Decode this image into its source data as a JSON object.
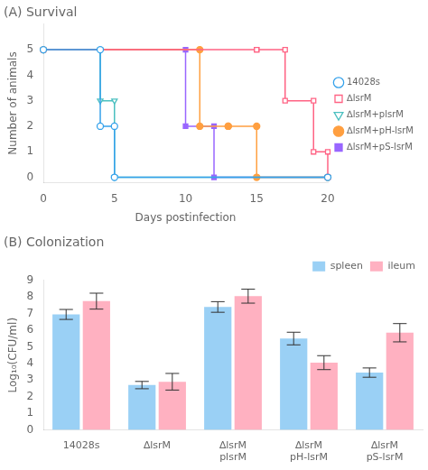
{
  "chart_data": [
    {
      "type": "line",
      "title": "(A) Survival",
      "x_label": "Days postinfection",
      "y_label": "Number of animals",
      "xlim": [
        0,
        20
      ],
      "xticks": [
        0,
        5,
        10,
        15,
        20
      ],
      "ylim": [
        -0.2,
        6
      ],
      "yticks": [
        0,
        1,
        2,
        3,
        4,
        5
      ],
      "grid": false,
      "legend": "center right",
      "series": [
        {
          "name": "14028s",
          "marker": "circle",
          "x": [
            0,
            4,
            4,
            5,
            5,
            20
          ],
          "values": [
            5,
            5,
            2,
            2,
            0,
            0
          ]
        },
        {
          "name": "∆lsrM",
          "marker": "square",
          "x": [
            0,
            15,
            15,
            17,
            17,
            19,
            19,
            20,
            20
          ],
          "values": [
            5,
            5,
            5,
            5,
            3,
            3,
            1,
            1,
            0
          ]
        },
        {
          "name": "∆lsrM+plsrM",
          "marker": "triangle_down",
          "x": [
            0,
            4,
            4,
            5,
            5,
            20
          ],
          "values": [
            5,
            5,
            3,
            3,
            0,
            0
          ]
        },
        {
          "name": "∆lsrM+pH-lsrM",
          "marker": "filled_circle",
          "x": [
            0,
            11,
            11,
            13,
            13,
            15,
            15,
            20
          ],
          "values": [
            5,
            5,
            2,
            2,
            2,
            2,
            0,
            0
          ]
        },
        {
          "name": "∆lsrM+pS-lsrM",
          "marker": "filled_square",
          "x": [
            0,
            10,
            10,
            12,
            12,
            20
          ],
          "values": [
            5,
            5,
            2,
            2,
            0,
            0
          ]
        }
      ]
    },
    {
      "type": "bar",
      "title": "(B) Colonization",
      "y_label": "Log₁₀(CFU/ml)",
      "categories": [
        "14028s",
        "∆lsrM",
        "∆lsrM\nplsrM",
        "∆lsrM\npH-lsrM",
        "∆lsrM\npS-lsrM"
      ],
      "ylim": [
        0,
        9
      ],
      "yticks": [
        0,
        1,
        2,
        3,
        4,
        5,
        6,
        7,
        8,
        9
      ],
      "grid": false,
      "legend": "upper right",
      "series": [
        {
          "name": "spleen",
          "values": [
            6.95,
            2.7,
            7.4,
            5.5,
            3.45
          ],
          "errors": [
            0.3,
            0.22,
            0.32,
            0.38,
            0.28
          ]
        },
        {
          "name": "ileum",
          "values": [
            7.75,
            2.9,
            8.05,
            4.05,
            5.85
          ],
          "errors": [
            0.48,
            0.5,
            0.42,
            0.42,
            0.55
          ]
        }
      ]
    }
  ]
}
